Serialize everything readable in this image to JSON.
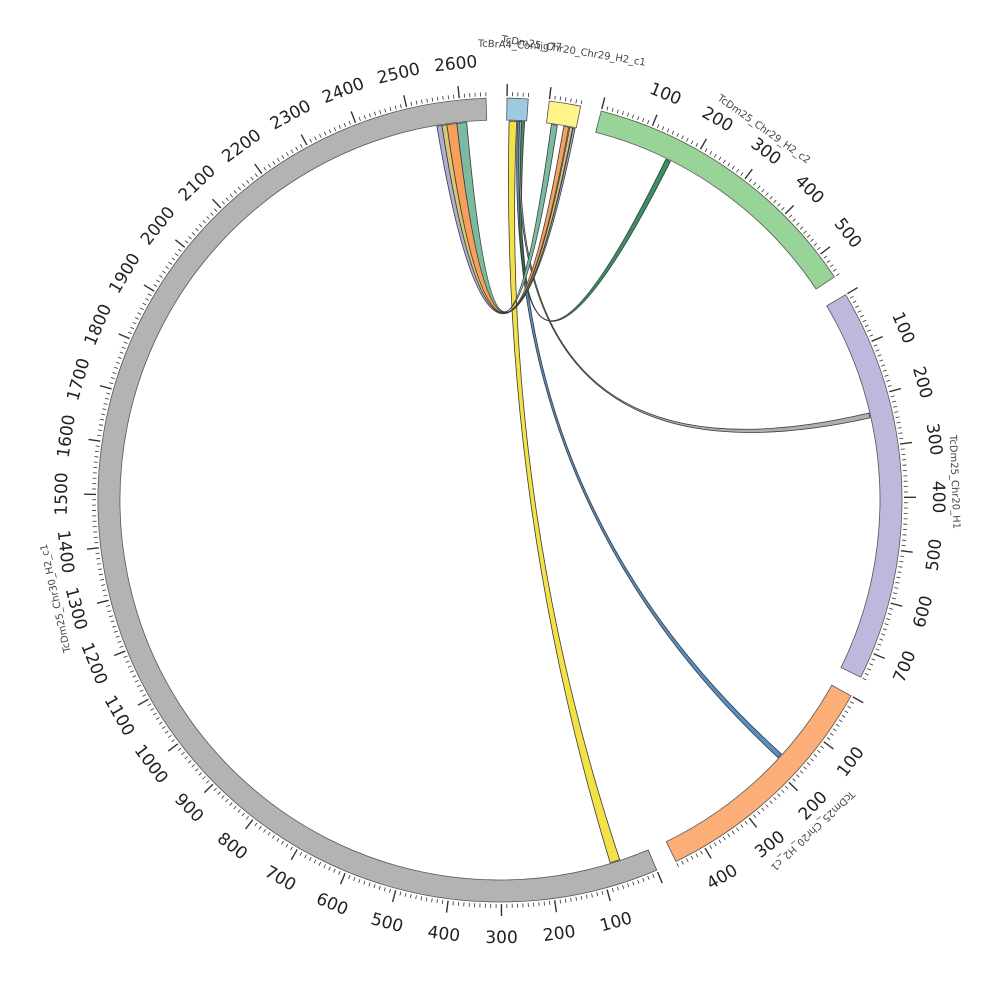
{
  "diagram": {
    "type": "circos",
    "contigs": [
      {
        "name": "TcBrA4_Contig77",
        "length": 40,
        "color": "#9ecae1",
        "ticks": []
      },
      {
        "name": "TcDm25_Chr20_Chr29_H2_c1",
        "length": 60,
        "color": "#fef48a",
        "ticks": []
      },
      {
        "name": "TcDm25_Chr29_H2_c2",
        "length": 550,
        "color": "#98d397",
        "ticks": [
          100,
          200,
          300,
          400,
          500
        ]
      },
      {
        "name": "TcDm25_Chr20_H1",
        "length": 750,
        "color": "#bcb9dc",
        "ticks": [
          100,
          200,
          300,
          400,
          500,
          600,
          700
        ]
      },
      {
        "name": "TcDm25_Chr20_H2_c1",
        "length": 460,
        "color": "#fbae77",
        "ticks": [
          100,
          200,
          300,
          400
        ]
      },
      {
        "name": "TcDm25_Chr30_H2_c1",
        "length": 2650,
        "color": "#b3b3b3",
        "ticks": [
          100,
          200,
          300,
          400,
          500,
          600,
          700,
          800,
          900,
          1000,
          1100,
          1200,
          1300,
          1400,
          1500,
          1600,
          1700,
          1800,
          1900,
          2000,
          2100,
          2200,
          2300,
          2400,
          2500,
          2600
        ]
      }
    ],
    "links": [
      {
        "source": "TcBrA4_Contig77",
        "source_pos": [
          5,
          20
        ],
        "target": "TcDm25_Chr30_H2_c1",
        "target_pos": [
          60,
          80
        ],
        "color": "#f2df3c"
      },
      {
        "source": "TcBrA4_Contig77",
        "source_pos": [
          22,
          30
        ],
        "target": "TcDm25_Chr20_H2_c1",
        "target_pos": [
          170,
          180
        ],
        "color": "#4d89c4"
      },
      {
        "source": "TcBrA4_Contig77",
        "source_pos": [
          30,
          36
        ],
        "target": "TcDm25_Chr29_H2_c2",
        "target_pos": [
          150,
          160
        ],
        "color": "#2e8a5a"
      },
      {
        "source": "TcBrA4_Contig77",
        "source_pos": [
          26,
          30
        ],
        "target": "TcDm25_Chr20_H1",
        "target_pos": [
          230,
          240
        ],
        "color": "#aaaaaa"
      },
      {
        "source": "TcDm25_Chr30_H2_c1",
        "source_pos": [
          2590,
          2610
        ],
        "target": "TcDm25_Chr20_Chr29_H2_c1",
        "target_pos": [
          10,
          22
        ],
        "color": "#73b69a"
      },
      {
        "source": "TcDm25_Chr30_H2_c1",
        "source_pos": [
          2570,
          2590
        ],
        "target": "TcDm25_Chr20_Chr29_H2_c1",
        "target_pos": [
          35,
          45
        ],
        "color": "#f79a52"
      },
      {
        "source": "TcDm25_Chr30_H2_c1",
        "source_pos": [
          2560,
          2570
        ],
        "target": "TcDm25_Chr20_Chr29_H2_c1",
        "target_pos": [
          47,
          53
        ],
        "color": "#d8c46a"
      },
      {
        "source": "TcDm25_Chr30_H2_c1",
        "source_pos": [
          2550,
          2560
        ],
        "target": "TcDm25_Chr20_Chr29_H2_c1",
        "target_pos": [
          54,
          58
        ],
        "color": "#a9a9d6"
      }
    ]
  }
}
